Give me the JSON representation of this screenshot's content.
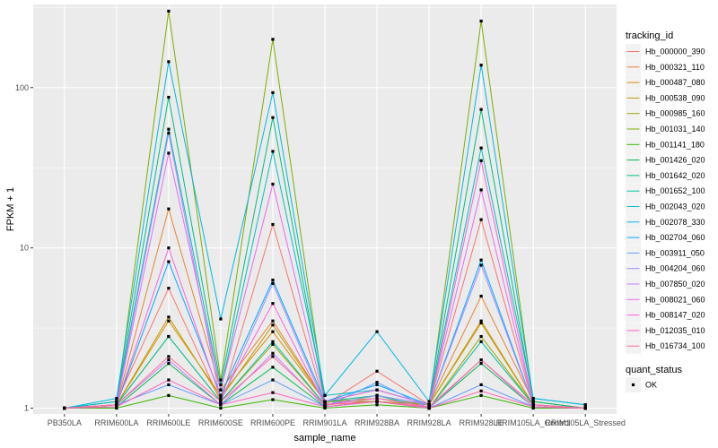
{
  "chart_data": {
    "type": "line",
    "xlabel": "sample_name",
    "ylabel": "FPKM + 1",
    "y_scale": "log10",
    "ylim": [
      0.92,
      330
    ],
    "y_ticks": [
      {
        "value": 1,
        "label": "1"
      },
      {
        "value": 10,
        "label": "10"
      },
      {
        "value": 100,
        "label": "100"
      }
    ],
    "grid": true,
    "background_color": "#ebebeb",
    "gridline_color": "#ffffff",
    "categories": [
      "PB350LA",
      "RRIM600LA",
      "RRIM600LE",
      "RRIM600SE",
      "RRIM600PE",
      "RRIM901LA",
      "RRIM928BA",
      "RRIM928LA",
      "RRIM928LE",
      "RRIM105LA_Control",
      "RRIM105LA_Stressed"
    ],
    "legend": {
      "position": "right",
      "color_title": "tracking_id",
      "shape_title": "quant_status",
      "shape_entries": [
        {
          "label": "OK",
          "marker": "square",
          "color": "#000000"
        }
      ]
    },
    "series": [
      {
        "name": "Hb_000000_390",
        "color": "#F8766D",
        "values": [
          1.0,
          1.1,
          5.6,
          1.1,
          14,
          1.05,
          1.7,
          1.05,
          15,
          1.05,
          1.0
        ]
      },
      {
        "name": "Hb_000321_110",
        "color": "#EA8331",
        "values": [
          1.0,
          1.05,
          17.5,
          1.3,
          3.5,
          1.1,
          1.3,
          1.05,
          5.0,
          1.1,
          1.0
        ]
      },
      {
        "name": "Hb_000487_080",
        "color": "#D89000",
        "values": [
          1.0,
          1.05,
          3.5,
          1.2,
          3.0,
          1.1,
          1.1,
          1.05,
          3.5,
          1.05,
          1.0
        ]
      },
      {
        "name": "Hb_000538_090",
        "color": "#C09B00",
        "values": [
          1.0,
          1.05,
          3.7,
          1.15,
          3.3,
          1.1,
          1.15,
          1.05,
          3.4,
          1.05,
          1.0
        ]
      },
      {
        "name": "Hb_000985_160",
        "color": "#A3A500",
        "values": [
          1.0,
          1.05,
          2.8,
          1.1,
          2.5,
          1.05,
          1.1,
          1.0,
          2.8,
          1.05,
          1.0
        ]
      },
      {
        "name": "Hb_001031_140",
        "color": "#7CAE00",
        "values": [
          1.0,
          1.05,
          300,
          1.5,
          200,
          1.1,
          1.1,
          1.05,
          260,
          1.1,
          1.0
        ]
      },
      {
        "name": "Hb_001141_180",
        "color": "#39B600",
        "values": [
          1.0,
          1.0,
          1.2,
          1.0,
          1.13,
          1.0,
          1.05,
          1.0,
          1.2,
          1.0,
          1.0
        ]
      },
      {
        "name": "Hb_001426_020",
        "color": "#00BB4E",
        "values": [
          1.0,
          1.02,
          1.9,
          1.05,
          1.8,
          1.02,
          1.1,
          1.0,
          1.9,
          1.02,
          1.0
        ]
      },
      {
        "name": "Hb_001642_020",
        "color": "#00BF7D",
        "values": [
          1.0,
          1.1,
          87,
          1.4,
          65,
          1.1,
          1.2,
          1.05,
          73,
          1.1,
          1.0
        ]
      },
      {
        "name": "Hb_001652_100",
        "color": "#00C1A3",
        "values": [
          1.0,
          1.05,
          2.8,
          1.1,
          2.6,
          1.05,
          1.2,
          1.0,
          2.6,
          1.05,
          1.0
        ]
      },
      {
        "name": "Hb_002043_020",
        "color": "#00BFC4",
        "values": [
          1.0,
          1.1,
          55,
          1.3,
          40,
          1.2,
          1.3,
          1.05,
          42,
          1.15,
          1.05
        ]
      },
      {
        "name": "Hb_002078_330",
        "color": "#00B8E5",
        "values": [
          1.0,
          1.15,
          145,
          3.6,
          93,
          1.2,
          3.0,
          1.1,
          138,
          1.15,
          1.05
        ]
      },
      {
        "name": "Hb_002704_060",
        "color": "#00ABFD",
        "values": [
          1.0,
          1.05,
          8.2,
          1.2,
          6.3,
          1.1,
          1.4,
          1.05,
          8.4,
          1.05,
          1.0
        ]
      },
      {
        "name": "Hb_003911_050",
        "color": "#619CFF",
        "values": [
          1.0,
          1.05,
          1.4,
          1.05,
          1.5,
          1.02,
          1.45,
          1.0,
          1.4,
          1.02,
          1.0
        ]
      },
      {
        "name": "Hb_004204_060",
        "color": "#A58AFF",
        "values": [
          1.0,
          1.05,
          52,
          1.1,
          6.0,
          1.05,
          1.2,
          1.05,
          7.8,
          1.05,
          1.0
        ]
      },
      {
        "name": "Hb_007850_020",
        "color": "#C77CFF",
        "values": [
          1.0,
          1.05,
          2.0,
          1.05,
          2.2,
          1.02,
          1.1,
          1.0,
          2.0,
          1.02,
          1.0
        ]
      },
      {
        "name": "Hb_008021_060",
        "color": "#E76BF3",
        "values": [
          1.0,
          1.05,
          39,
          1.3,
          25,
          1.1,
          1.3,
          1.05,
          23,
          1.05,
          1.0
        ]
      },
      {
        "name": "Hb_008147_020",
        "color": "#FA62DB",
        "values": [
          1.0,
          1.05,
          10,
          1.15,
          4.5,
          1.05,
          1.15,
          1.02,
          35,
          1.05,
          1.0
        ]
      },
      {
        "name": "Hb_012035_010",
        "color": "#FF62BC",
        "values": [
          1.0,
          1.02,
          1.5,
          1.05,
          1.25,
          1.02,
          1.1,
          1.0,
          1.28,
          1.02,
          1.0
        ]
      },
      {
        "name": "Hb_016734_100",
        "color": "#FF6C91",
        "values": [
          1.0,
          1.05,
          2.1,
          1.1,
          2.1,
          1.05,
          1.1,
          1.02,
          2.0,
          1.05,
          1.0
        ]
      }
    ]
  }
}
